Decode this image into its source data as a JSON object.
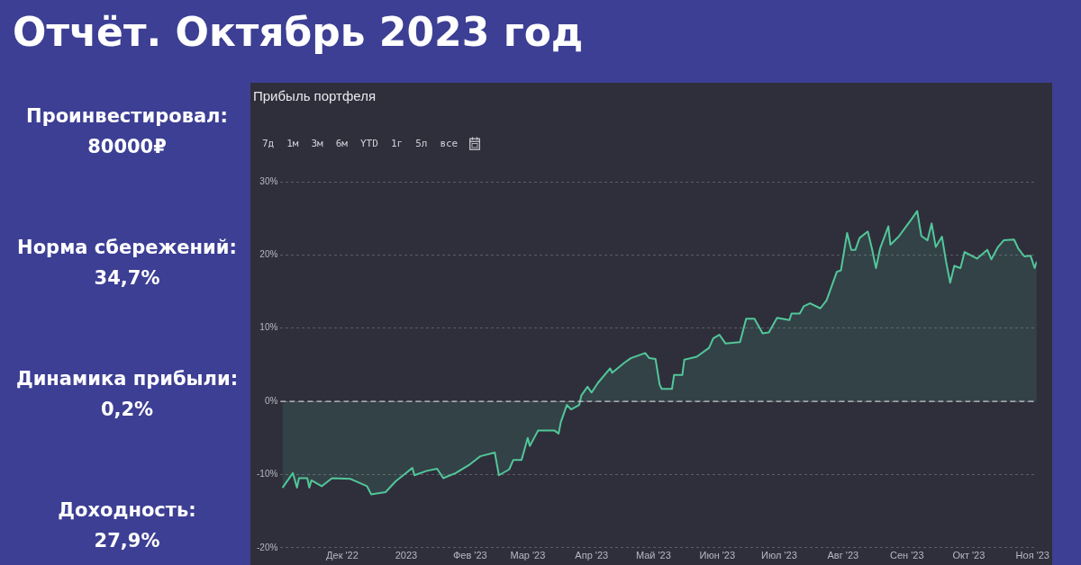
{
  "chart_data": [
    {
      "type": "other",
      "title": "Отчёт. Октябрь 2023 год",
      "annotations": [
        "Проинвестировал:",
        "80000₽",
        "Норма сбережений:",
        "34,7%",
        "Динамика прибыли:",
        "0,2%",
        "Доходность:",
        "27,9%"
      ]
    },
    {
      "type": "line",
      "title": "Прибыль портфеля",
      "annotations": [
        "7д",
        "1м",
        "3м",
        "6м",
        "YTD",
        "1г",
        "5л",
        "все"
      ],
      "x": [
        "2022-11-02",
        "2022-11-07",
        "2022-11-09",
        "2022-11-10",
        "2022-11-14",
        "2022-11-15",
        "2022-11-16",
        "2022-11-21",
        "2022-11-26",
        "2022-12-05",
        "2022-12-13",
        "2022-12-15",
        "2022-12-22",
        "2022-12-27",
        "2022-12-31",
        "2023-01-04",
        "2023-01-05",
        "2023-01-11",
        "2023-01-16",
        "2023-01-19",
        "2023-01-25",
        "2023-02-01",
        "2023-02-06",
        "2023-02-13",
        "2023-02-15",
        "2023-02-20",
        "2023-02-22",
        "2023-02-26",
        "2023-03-01",
        "2023-03-02",
        "2023-03-06",
        "2023-03-14",
        "2023-03-16",
        "2023-03-17",
        "2023-03-20",
        "2023-03-22",
        "2023-03-26",
        "2023-03-27",
        "2023-03-30",
        "2023-04-01",
        "2023-04-04",
        "2023-04-10",
        "2023-04-11",
        "2023-04-17",
        "2023-04-20",
        "2023-04-27",
        "2023-04-29",
        "2023-05-02",
        "2023-05-04",
        "2023-05-05",
        "2023-05-10",
        "2023-05-11",
        "2023-05-15",
        "2023-05-16",
        "2023-05-22",
        "2023-05-28",
        "2023-05-30",
        "2023-06-02",
        "2023-06-05",
        "2023-06-12",
        "2023-06-15",
        "2023-06-19",
        "2023-06-23",
        "2023-06-26",
        "2023-06-30",
        "2023-07-06",
        "2023-07-07",
        "2023-07-11",
        "2023-07-13",
        "2023-07-16",
        "2023-07-21",
        "2023-07-24",
        "2023-07-29",
        "2023-07-31",
        "2023-08-03",
        "2023-08-05",
        "2023-08-07",
        "2023-08-09",
        "2023-08-13",
        "2023-08-15",
        "2023-08-17",
        "2023-08-19",
        "2023-08-23",
        "2023-08-24",
        "2023-08-28",
        "2023-09-03",
        "2023-09-06",
        "2023-09-08",
        "2023-09-11",
        "2023-09-13",
        "2023-09-15",
        "2023-09-18",
        "2023-09-20",
        "2023-09-22",
        "2023-09-24",
        "2023-09-27",
        "2023-09-29",
        "2023-10-05",
        "2023-10-10",
        "2023-10-12",
        "2023-10-15",
        "2023-10-18",
        "2023-10-23",
        "2023-10-25",
        "2023-10-28",
        "2023-10-31",
        "2023-11-02",
        "2023-11-03"
      ],
      "series": [
        {
          "type": "area",
          "color": "#52c79a",
          "values": [
            -11.8,
            -9.8,
            -11.8,
            -10.5,
            -10.5,
            -11.8,
            -10.8,
            -11.6,
            -10.5,
            -10.6,
            -11.6,
            -12.7,
            -12.4,
            -10.9,
            -10,
            -9.1,
            -10.1,
            -9.5,
            -9.2,
            -10.5,
            -9.8,
            -8.6,
            -7.5,
            -7,
            -10.1,
            -9.3,
            -8,
            -8,
            -5,
            -6.1,
            -4,
            -4,
            -4.4,
            -2.9,
            -0.5,
            -1.1,
            -0.5,
            0.8,
            2,
            1.2,
            2.5,
            4.5,
            3.9,
            5.3,
            5.9,
            6.6,
            5.9,
            5.8,
            2.3,
            1.7,
            1.7,
            3.6,
            3.6,
            5.7,
            6.1,
            7.3,
            8.6,
            9.1,
            7.9,
            8.1,
            11.3,
            11.3,
            9.3,
            9.4,
            11.4,
            11.1,
            12,
            12,
            13,
            13.4,
            12.7,
            13.8,
            17.7,
            17.9,
            23,
            20.7,
            20.7,
            22.3,
            23.2,
            20.9,
            18.2,
            20.9,
            23.9,
            21.4,
            22.5,
            24.8,
            26,
            22.6,
            22,
            24.3,
            21.1,
            22.5,
            19.1,
            16.2,
            18.5,
            18.2,
            20.4,
            19.5,
            20.7,
            19.4,
            21,
            22,
            22.1,
            20.9,
            19.8,
            19.9,
            18.2,
            19.1
          ]
        }
      ],
      "xlim": [
        "2022-11-01",
        "2023-11-03"
      ],
      "xticks": [
        {
          "value": "2022-12-01",
          "label": "Дек '22"
        },
        {
          "value": "2023-01-01",
          "label": "2023"
        },
        {
          "value": "2023-02-01",
          "label": "Фев '23"
        },
        {
          "value": "2023-03-01",
          "label": "Мар '23"
        },
        {
          "value": "2023-04-01",
          "label": "Апр '23"
        },
        {
          "value": "2023-05-01",
          "label": "Май '23"
        },
        {
          "value": "2023-06-01",
          "label": "Июн '23"
        },
        {
          "value": "2023-07-01",
          "label": "Июл '23"
        },
        {
          "value": "2023-08-01",
          "label": "Авг '23"
        },
        {
          "value": "2023-09-01",
          "label": "Сен '23"
        },
        {
          "value": "2023-10-01",
          "label": "Окт '23"
        },
        {
          "value": "2023-11-01",
          "label": "Ноя '23"
        }
      ],
      "ylim": [
        -20,
        30
      ],
      "yticks": [
        {
          "value": -20,
          "label": "-20%"
        },
        {
          "value": -10,
          "label": "-10%"
        },
        {
          "value": 0,
          "label": "0%"
        },
        {
          "value": 10,
          "label": "10%"
        },
        {
          "value": 20,
          "label": "20%"
        },
        {
          "value": 30,
          "label": "30%"
        }
      ],
      "ref_lines": [
        {
          "axis": "y",
          "value": 0,
          "color": "#c8c8d0",
          "line_style": "dashed"
        }
      ],
      "grid": "y",
      "marker": "none",
      "legend": false
    }
  ]
}
